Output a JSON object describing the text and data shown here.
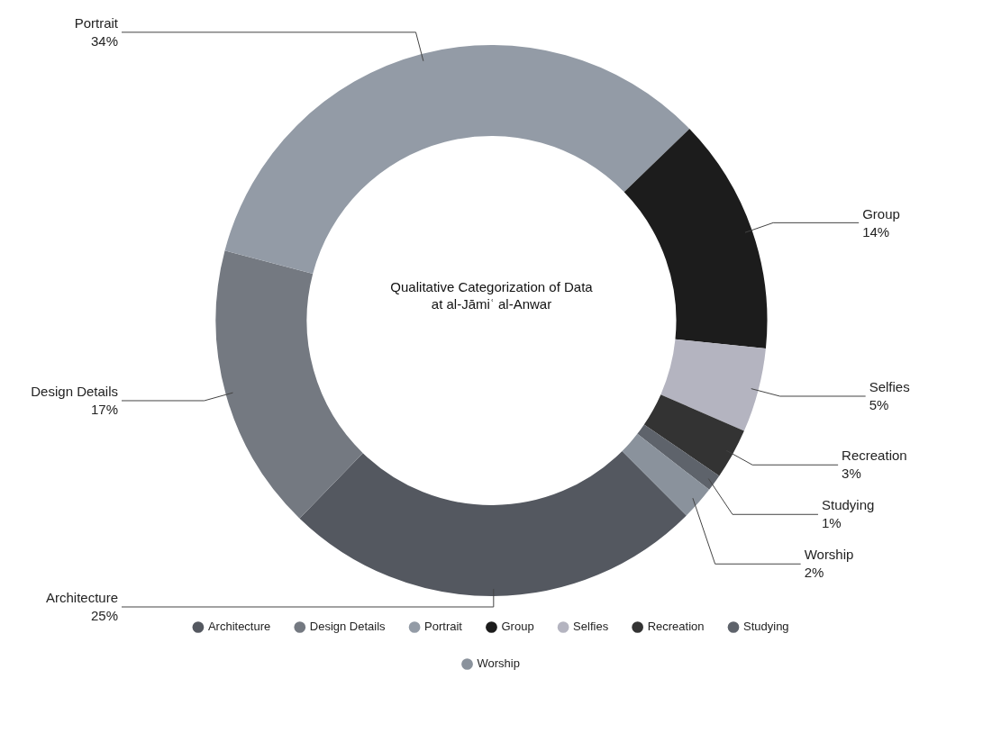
{
  "chart_data": {
    "type": "donut",
    "title": "Qualitative Categorization of Data\nat al-Jāmiʿ al-Anwar",
    "categories": [
      "Architecture",
      "Design Details",
      "Portrait",
      "Group",
      "Selfies",
      "Recreation",
      "Studying",
      "Worship"
    ],
    "values": [
      25,
      17,
      34,
      14,
      5,
      3,
      1,
      2
    ],
    "value_labels": [
      "25%",
      "17%",
      "34%",
      "14%",
      "5%",
      "3%",
      "1%",
      "2%"
    ],
    "colors": [
      "#545860",
      "#747981",
      "#939ba6",
      "#1c1c1c",
      "#b4b4c0",
      "#333333",
      "#5e636b",
      "#8a929c"
    ],
    "legend": "bottom"
  }
}
